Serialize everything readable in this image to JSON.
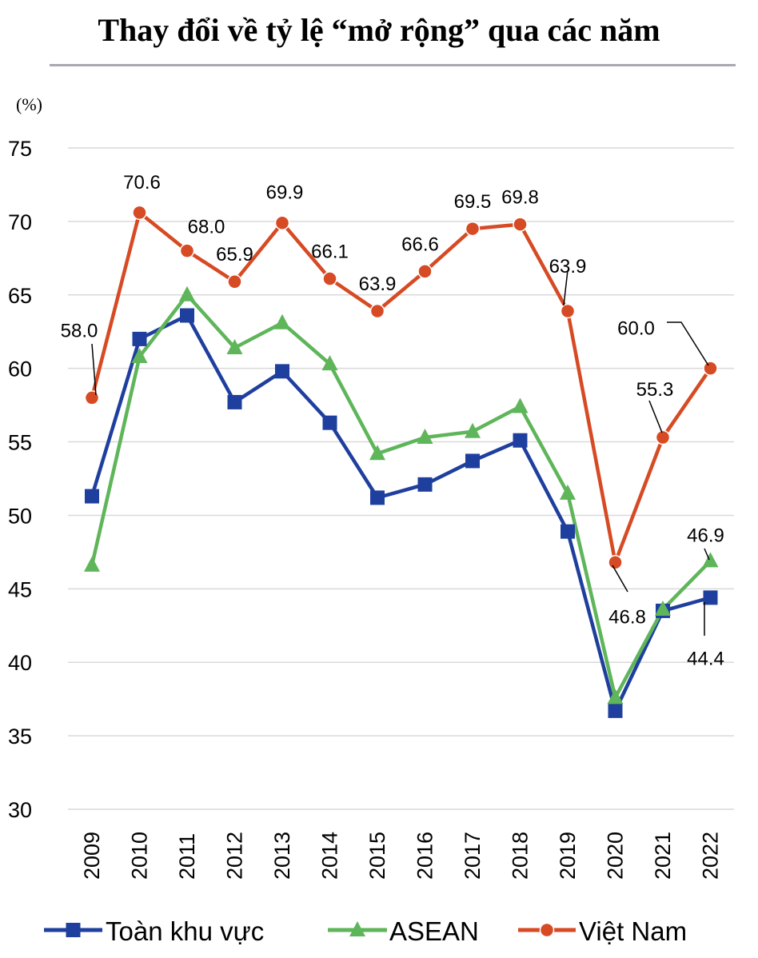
{
  "page_title": "Thay đổi về tỷ lệ “mở rộng” qua các năm",
  "chart_data": {
    "type": "line",
    "title": "Thay đổi về tỷ lệ “mở rộng” qua các năm",
    "y_unit": "(%)",
    "ylim": [
      30,
      75
    ],
    "y_ticks": [
      30,
      35,
      40,
      45,
      50,
      55,
      60,
      65,
      70,
      75
    ],
    "grid": true,
    "legend_position": "bottom",
    "categories": [
      "2009",
      "2010",
      "2011",
      "2012",
      "2013",
      "2014",
      "2015",
      "2016",
      "2017",
      "2018",
      "2019",
      "2020",
      "2021",
      "2022"
    ],
    "series": [
      {
        "name": "Toàn khu vực",
        "color": "#1f3f9e",
        "marker": "square",
        "values": [
          51.3,
          62.0,
          63.6,
          57.7,
          59.8,
          56.3,
          51.2,
          52.1,
          53.7,
          55.1,
          48.9,
          36.7,
          43.5,
          44.4
        ],
        "labels": {
          "13": "44.4"
        }
      },
      {
        "name": "ASEAN",
        "color": "#5fb55a",
        "marker": "triangle",
        "values": [
          46.6,
          60.8,
          65.0,
          61.4,
          63.1,
          60.3,
          54.2,
          55.3,
          55.7,
          57.4,
          51.5,
          37.6,
          43.6,
          46.9
        ],
        "labels": {
          "13": "46.9"
        }
      },
      {
        "name": "Việt Nam",
        "color": "#d64a24",
        "marker": "circle",
        "values": [
          58.0,
          70.6,
          68.0,
          65.9,
          69.9,
          66.1,
          63.9,
          66.6,
          69.5,
          69.8,
          63.9,
          46.8,
          55.3,
          60.0
        ],
        "labels": {
          "0": "58.0",
          "1": "70.6",
          "2": "68.0",
          "3": "65.9",
          "4": "69.9",
          "5": "66.1",
          "6": "63.9",
          "7": "66.6",
          "8": "69.5",
          "9": "69.8",
          "10": "63.9",
          "11": "46.8",
          "12": "55.3",
          "13": "60.0"
        }
      }
    ]
  }
}
